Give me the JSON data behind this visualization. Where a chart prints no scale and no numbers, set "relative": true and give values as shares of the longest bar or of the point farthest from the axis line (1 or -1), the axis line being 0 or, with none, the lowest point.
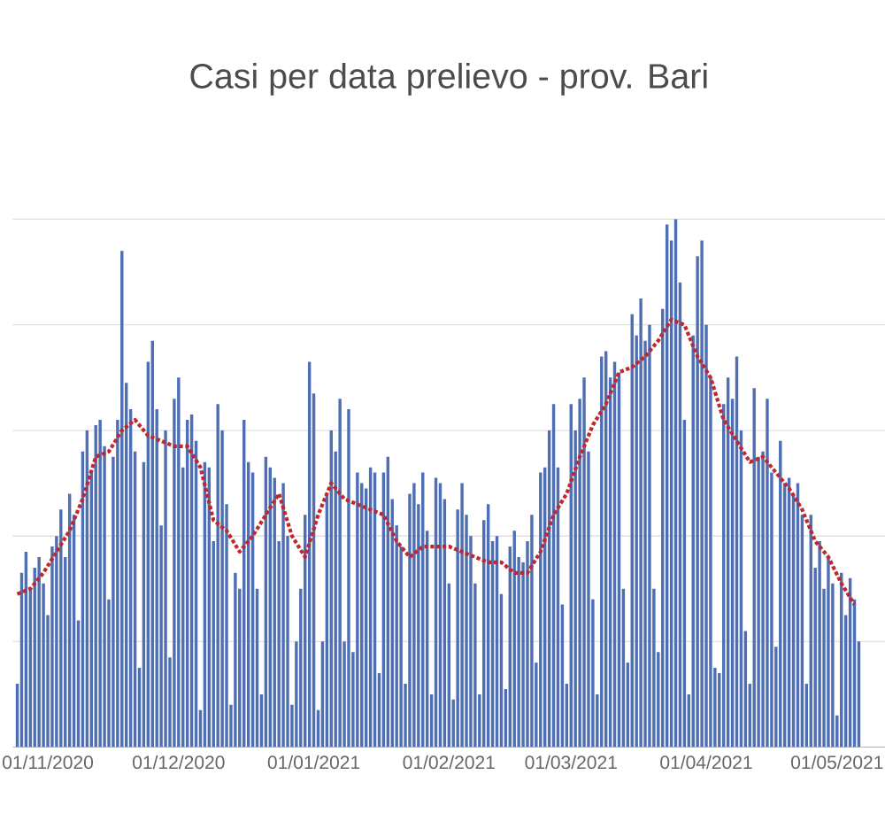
{
  "chart_data": {
    "type": "bar",
    "title": "Casi per data prelievo - prov. Bari",
    "relative": true,
    "grid": "y",
    "line_style": "dotted",
    "xlim": [
      "2020-10-24",
      "2021-05-12"
    ],
    "xticks": [
      {
        "value": "2020-11-01",
        "label": "01/11/2020"
      },
      {
        "value": "2020-12-01",
        "label": "01/12/2020"
      },
      {
        "value": "2021-01-01",
        "label": "01/01/2021"
      },
      {
        "value": "2021-02-01",
        "label": "01/02/2021"
      },
      {
        "value": "2021-03-01",
        "label": "01/03/2021"
      },
      {
        "value": "2021-04-01",
        "label": "01/04/2021"
      },
      {
        "value": "2021-05-01",
        "label": "01/05/2021"
      }
    ],
    "series": [
      {
        "color": "#4e6fb3",
        "x": [
          "2020-10-25",
          "2020-10-26",
          "2020-10-27",
          "2020-10-28",
          "2020-10-29",
          "2020-10-30",
          "2020-10-31",
          "2020-11-01",
          "2020-11-02",
          "2020-11-03",
          "2020-11-04",
          "2020-11-05",
          "2020-11-06",
          "2020-11-07",
          "2020-11-08",
          "2020-11-09",
          "2020-11-10",
          "2020-11-11",
          "2020-11-12",
          "2020-11-13",
          "2020-11-14",
          "2020-11-15",
          "2020-11-16",
          "2020-11-17",
          "2020-11-18",
          "2020-11-19",
          "2020-11-20",
          "2020-11-21",
          "2020-11-22",
          "2020-11-23",
          "2020-11-24",
          "2020-11-25",
          "2020-11-26",
          "2020-11-27",
          "2020-11-28",
          "2020-11-29",
          "2020-11-30",
          "2020-12-01",
          "2020-12-02",
          "2020-12-03",
          "2020-12-04",
          "2020-12-05",
          "2020-12-06",
          "2020-12-07",
          "2020-12-08",
          "2020-12-09",
          "2020-12-10",
          "2020-12-11",
          "2020-12-12",
          "2020-12-13",
          "2020-12-14",
          "2020-12-15",
          "2020-12-16",
          "2020-12-17",
          "2020-12-18",
          "2020-12-19",
          "2020-12-20",
          "2020-12-21",
          "2020-12-22",
          "2020-12-23",
          "2020-12-24",
          "2020-12-25",
          "2020-12-26",
          "2020-12-27",
          "2020-12-28",
          "2020-12-29",
          "2020-12-30",
          "2020-12-31",
          "2021-01-01",
          "2021-01-02",
          "2021-01-03",
          "2021-01-04",
          "2021-01-05",
          "2021-01-06",
          "2021-01-07",
          "2021-01-08",
          "2021-01-09",
          "2021-01-10",
          "2021-01-11",
          "2021-01-12",
          "2021-01-13",
          "2021-01-14",
          "2021-01-15",
          "2021-01-16",
          "2021-01-17",
          "2021-01-18",
          "2021-01-19",
          "2021-01-20",
          "2021-01-21",
          "2021-01-22",
          "2021-01-23",
          "2021-01-24",
          "2021-01-25",
          "2021-01-26",
          "2021-01-27",
          "2021-01-28",
          "2021-01-29",
          "2021-01-30",
          "2021-01-31",
          "2021-02-01",
          "2021-02-02",
          "2021-02-03",
          "2021-02-04",
          "2021-02-05",
          "2021-02-06",
          "2021-02-07",
          "2021-02-08",
          "2021-02-09",
          "2021-02-10",
          "2021-02-11",
          "2021-02-12",
          "2021-02-13",
          "2021-02-14",
          "2021-02-15",
          "2021-02-16",
          "2021-02-17",
          "2021-02-18",
          "2021-02-19",
          "2021-02-20",
          "2021-02-21",
          "2021-02-22",
          "2021-02-23",
          "2021-02-24",
          "2021-02-25",
          "2021-02-26",
          "2021-02-27",
          "2021-02-28",
          "2021-03-01",
          "2021-03-02",
          "2021-03-03",
          "2021-03-04",
          "2021-03-05",
          "2021-03-06",
          "2021-03-07",
          "2021-03-08",
          "2021-03-09",
          "2021-03-10",
          "2021-03-11",
          "2021-03-12",
          "2021-03-13",
          "2021-03-14",
          "2021-03-15",
          "2021-03-16",
          "2021-03-17",
          "2021-03-18",
          "2021-03-19",
          "2021-03-20",
          "2021-03-21",
          "2021-03-22",
          "2021-03-23",
          "2021-03-24",
          "2021-03-25",
          "2021-03-26",
          "2021-03-27",
          "2021-03-28",
          "2021-03-29",
          "2021-03-30",
          "2021-03-31",
          "2021-04-01",
          "2021-04-02",
          "2021-04-03",
          "2021-04-04",
          "2021-04-05",
          "2021-04-06",
          "2021-04-07",
          "2021-04-08",
          "2021-04-09",
          "2021-04-10",
          "2021-04-11",
          "2021-04-12",
          "2021-04-13",
          "2021-04-14",
          "2021-04-15",
          "2021-04-16",
          "2021-04-17",
          "2021-04-18",
          "2021-04-19",
          "2021-04-20",
          "2021-04-21",
          "2021-04-22",
          "2021-04-23",
          "2021-04-24",
          "2021-04-25",
          "2021-04-26",
          "2021-04-27",
          "2021-04-28",
          "2021-04-29",
          "2021-04-30",
          "2021-05-01",
          "2021-05-02",
          "2021-05-03",
          "2021-05-04",
          "2021-05-05",
          "2021-05-06"
        ],
        "values": [
          0.12,
          0.33,
          0.37,
          0.3,
          0.34,
          0.36,
          0.31,
          0.25,
          0.38,
          0.4,
          0.45,
          0.36,
          0.48,
          0.44,
          0.24,
          0.56,
          0.6,
          0.52,
          0.61,
          0.62,
          0.57,
          0.28,
          0.55,
          0.62,
          0.94,
          0.69,
          0.64,
          0.56,
          0.15,
          0.54,
          0.73,
          0.77,
          0.64,
          0.42,
          0.6,
          0.17,
          0.66,
          0.7,
          0.53,
          0.62,
          0.63,
          0.58,
          0.07,
          0.54,
          0.53,
          0.39,
          0.65,
          0.6,
          0.46,
          0.08,
          0.33,
          0.3,
          0.62,
          0.54,
          0.52,
          0.3,
          0.1,
          0.55,
          0.53,
          0.51,
          0.39,
          0.5,
          0.4,
          0.08,
          0.2,
          0.3,
          0.44,
          0.73,
          0.67,
          0.07,
          0.2,
          0.48,
          0.6,
          0.56,
          0.66,
          0.2,
          0.64,
          0.18,
          0.52,
          0.5,
          0.49,
          0.53,
          0.52,
          0.14,
          0.52,
          0.55,
          0.47,
          0.42,
          0.38,
          0.12,
          0.48,
          0.5,
          0.46,
          0.52,
          0.41,
          0.1,
          0.51,
          0.5,
          0.47,
          0.31,
          0.09,
          0.45,
          0.5,
          0.44,
          0.4,
          0.31,
          0.1,
          0.43,
          0.46,
          0.39,
          0.4,
          0.29,
          0.11,
          0.38,
          0.41,
          0.36,
          0.35,
          0.39,
          0.44,
          0.16,
          0.52,
          0.53,
          0.6,
          0.65,
          0.53,
          0.27,
          0.12,
          0.65,
          0.6,
          0.66,
          0.7,
          0.56,
          0.28,
          0.1,
          0.74,
          0.75,
          0.7,
          0.73,
          0.71,
          0.3,
          0.16,
          0.82,
          0.78,
          0.85,
          0.77,
          0.8,
          0.3,
          0.18,
          0.83,
          0.99,
          0.96,
          1.0,
          0.88,
          0.62,
          0.1,
          0.78,
          0.93,
          0.96,
          0.8,
          0.7,
          0.15,
          0.14,
          0.65,
          0.7,
          0.66,
          0.74,
          0.6,
          0.22,
          0.12,
          0.68,
          0.55,
          0.56,
          0.66,
          0.52,
          0.19,
          0.58,
          0.5,
          0.51,
          0.48,
          0.5,
          0.44,
          0.12,
          0.44,
          0.34,
          0.39,
          0.3,
          0.36,
          0.31,
          0.06,
          0.33,
          0.25,
          0.32,
          0.28,
          0.2
        ]
      },
      {
        "type": "line",
        "color": "#c0282d",
        "x": [
          "2020-10-25",
          "2020-10-28",
          "2020-10-31",
          "2020-11-03",
          "2020-11-06",
          "2020-11-09",
          "2020-11-12",
          "2020-11-15",
          "2020-11-18",
          "2020-11-21",
          "2020-11-24",
          "2020-11-27",
          "2020-11-30",
          "2020-12-03",
          "2020-12-06",
          "2020-12-09",
          "2020-12-12",
          "2020-12-15",
          "2020-12-18",
          "2020-12-21",
          "2020-12-24",
          "2020-12-27",
          "2020-12-30",
          "2021-01-02",
          "2021-01-05",
          "2021-01-08",
          "2021-01-11",
          "2021-01-14",
          "2021-01-17",
          "2021-01-20",
          "2021-01-23",
          "2021-01-26",
          "2021-01-29",
          "2021-02-01",
          "2021-02-04",
          "2021-02-07",
          "2021-02-10",
          "2021-02-13",
          "2021-02-16",
          "2021-02-19",
          "2021-02-22",
          "2021-02-25",
          "2021-02-28",
          "2021-03-03",
          "2021-03-06",
          "2021-03-09",
          "2021-03-12",
          "2021-03-15",
          "2021-03-18",
          "2021-03-21",
          "2021-03-24",
          "2021-03-27",
          "2021-03-30",
          "2021-04-02",
          "2021-04-05",
          "2021-04-08",
          "2021-04-11",
          "2021-04-14",
          "2021-04-17",
          "2021-04-20",
          "2021-04-23",
          "2021-04-26",
          "2021-04-29",
          "2021-05-02",
          "2021-05-05"
        ],
        "values": [
          0.29,
          0.3,
          0.33,
          0.37,
          0.41,
          0.47,
          0.55,
          0.56,
          0.6,
          0.62,
          0.59,
          0.58,
          0.57,
          0.57,
          0.53,
          0.43,
          0.41,
          0.37,
          0.4,
          0.44,
          0.48,
          0.4,
          0.36,
          0.44,
          0.5,
          0.47,
          0.46,
          0.45,
          0.44,
          0.39,
          0.36,
          0.38,
          0.38,
          0.38,
          0.37,
          0.36,
          0.35,
          0.35,
          0.33,
          0.33,
          0.37,
          0.44,
          0.48,
          0.55,
          0.61,
          0.65,
          0.71,
          0.72,
          0.74,
          0.77,
          0.81,
          0.8,
          0.74,
          0.7,
          0.62,
          0.58,
          0.54,
          0.55,
          0.52,
          0.49,
          0.45,
          0.39,
          0.36,
          0.31,
          0.27
        ]
      }
    ]
  }
}
